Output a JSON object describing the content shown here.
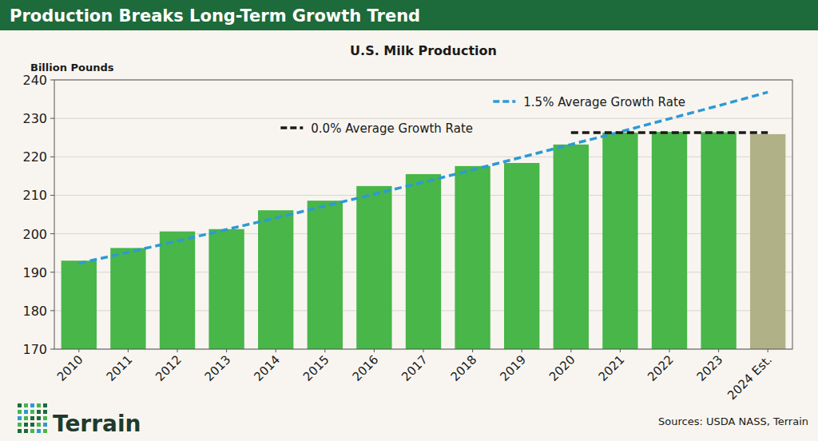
{
  "chart_data": {
    "type": "bar",
    "title": "Production Breaks Long-Term Growth Trend",
    "subtitle": "U.S. Milk Production",
    "y_label": "Billion Pounds",
    "source": "Sources: USDA NASS, Terrain",
    "logo": "Terrain",
    "categories": [
      "2010",
      "2011",
      "2012",
      "2013",
      "2014",
      "2015",
      "2016",
      "2017",
      "2018",
      "2019",
      "2020",
      "2021",
      "2022",
      "2023",
      "2024 Est."
    ],
    "series": [
      {
        "name": "U.S. Milk Production",
        "type": "bar",
        "colors": [
          "#48b649",
          "#48b649",
          "#48b649",
          "#48b649",
          "#48b649",
          "#48b649",
          "#48b649",
          "#48b649",
          "#48b649",
          "#48b649",
          "#48b649",
          "#48b649",
          "#48b649",
          "#48b649",
          "#b1b187"
        ],
        "values": [
          193.0,
          196.3,
          200.6,
          201.2,
          206.1,
          208.6,
          212.4,
          215.5,
          217.6,
          218.4,
          223.2,
          226.3,
          226.5,
          226.4,
          225.9
        ]
      },
      {
        "name": "1.5% Average Growth Rate",
        "type": "line",
        "color": "#2c9ad6",
        "line_style": "dashed",
        "values": [
          192.3,
          195.2,
          198.1,
          201.1,
          204.1,
          207.2,
          210.3,
          213.4,
          216.6,
          219.9,
          223.2,
          226.5,
          229.9,
          233.3,
          236.8
        ]
      },
      {
        "name": "0.0% Average Growth Rate",
        "type": "line",
        "color": "#1a1a1a",
        "line_style": "dashed",
        "values": [
          null,
          null,
          null,
          null,
          null,
          null,
          null,
          null,
          null,
          null,
          226.3,
          226.3,
          226.3,
          226.3,
          226.3
        ]
      }
    ],
    "ylim": [
      170,
      240
    ],
    "yticks": [
      170,
      180,
      190,
      200,
      210,
      220,
      230,
      240
    ],
    "grid": true,
    "legend": "top-right"
  }
}
